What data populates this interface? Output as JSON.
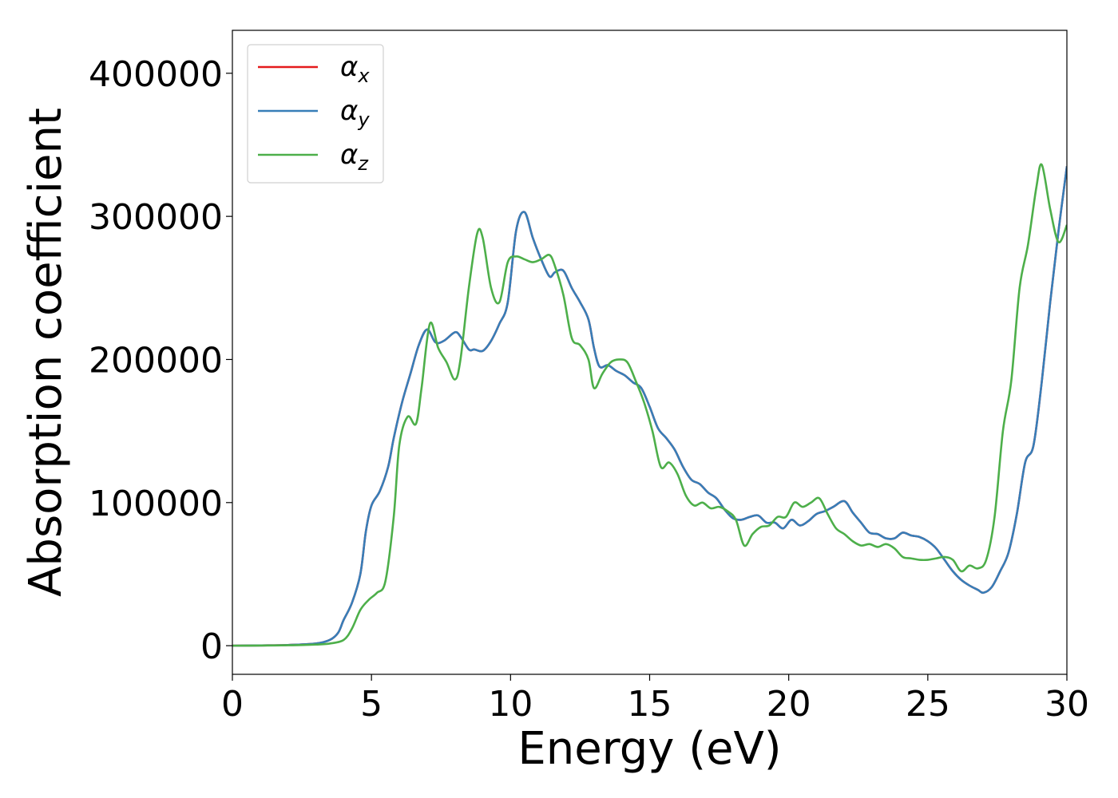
{
  "chart_data": {
    "type": "line",
    "title": "",
    "xlabel": "Energy (eV)",
    "ylabel": "Absorption coefficient",
    "xlim": [
      0,
      30
    ],
    "ylim": [
      -20000,
      430000
    ],
    "xticks": [
      0,
      5,
      10,
      15,
      20,
      25,
      30
    ],
    "xtick_labels": [
      "0",
      "5",
      "10",
      "15",
      "20",
      "25",
      "30"
    ],
    "yticks": [
      0,
      100000,
      200000,
      300000,
      400000
    ],
    "ytick_labels": [
      "0",
      "100000",
      "200000",
      "300000",
      "400000"
    ],
    "grid": false,
    "legend_position": "top-left",
    "series": [
      {
        "name": "α_x",
        "symbol": "α",
        "subscript": "x",
        "color": "#e41a1c",
        "x": [
          0,
          1,
          2,
          3,
          3.5,
          3.8,
          4.0,
          4.3,
          4.6,
          4.8,
          5.0,
          5.3,
          5.6,
          5.8,
          6.1,
          6.4,
          6.7,
          7.0,
          7.3,
          7.6,
          8.0,
          8.2,
          8.5,
          8.7,
          9.0,
          9.3,
          9.6,
          9.9,
          10.2,
          10.5,
          10.8,
          11.1,
          11.4,
          11.6,
          11.9,
          12.2,
          12.5,
          12.8,
          13.0,
          13.2,
          13.5,
          13.8,
          14.1,
          14.4,
          14.7,
          15.0,
          15.3,
          15.6,
          15.9,
          16.2,
          16.5,
          16.8,
          17.1,
          17.4,
          17.7,
          18.0,
          18.3,
          18.6,
          18.9,
          19.2,
          19.5,
          19.8,
          20.1,
          20.4,
          20.7,
          21.0,
          21.3,
          21.6,
          22.0,
          22.3,
          22.6,
          22.9,
          23.2,
          23.5,
          23.8,
          24.1,
          24.4,
          24.7,
          25.0,
          25.3,
          25.6,
          25.9,
          26.2,
          26.5,
          26.8,
          27.0,
          27.3,
          27.6,
          27.9,
          28.2,
          28.5,
          28.8,
          29.1,
          29.4,
          29.7,
          30.0
        ],
        "values": [
          0,
          200,
          500,
          1500,
          4000,
          9000,
          18000,
          30000,
          50000,
          80000,
          98000,
          108000,
          125000,
          145000,
          170000,
          190000,
          210000,
          221000,
          212000,
          213000,
          219000,
          216000,
          207000,
          207000,
          206000,
          213000,
          225000,
          240000,
          290000,
          303000,
          285000,
          270000,
          258000,
          261000,
          262000,
          250000,
          240000,
          228000,
          208000,
          195000,
          196000,
          192000,
          189000,
          184000,
          180000,
          167000,
          152000,
          145000,
          137000,
          125000,
          116000,
          113000,
          107000,
          103000,
          95000,
          89000,
          88000,
          90000,
          91000,
          86000,
          86000,
          82000,
          88000,
          84000,
          87000,
          92000,
          94000,
          97000,
          101000,
          93000,
          86000,
          79000,
          78000,
          75000,
          75000,
          79000,
          77000,
          76000,
          73000,
          68000,
          60000,
          52000,
          46000,
          42000,
          39000,
          37000,
          41000,
          52000,
          65000,
          92000,
          128000,
          140000,
          185000,
          240000,
          290000,
          335000
        ]
      },
      {
        "name": "α_y",
        "symbol": "α",
        "subscript": "y",
        "color": "#377eb8",
        "x": [
          0,
          1,
          2,
          3,
          3.5,
          3.8,
          4.0,
          4.3,
          4.6,
          4.8,
          5.0,
          5.3,
          5.6,
          5.8,
          6.1,
          6.4,
          6.7,
          7.0,
          7.3,
          7.6,
          8.0,
          8.2,
          8.5,
          8.7,
          9.0,
          9.3,
          9.6,
          9.9,
          10.2,
          10.5,
          10.8,
          11.1,
          11.4,
          11.6,
          11.9,
          12.2,
          12.5,
          12.8,
          13.0,
          13.2,
          13.5,
          13.8,
          14.1,
          14.4,
          14.7,
          15.0,
          15.3,
          15.6,
          15.9,
          16.2,
          16.5,
          16.8,
          17.1,
          17.4,
          17.7,
          18.0,
          18.3,
          18.6,
          18.9,
          19.2,
          19.5,
          19.8,
          20.1,
          20.4,
          20.7,
          21.0,
          21.3,
          21.6,
          22.0,
          22.3,
          22.6,
          22.9,
          23.2,
          23.5,
          23.8,
          24.1,
          24.4,
          24.7,
          25.0,
          25.3,
          25.6,
          25.9,
          26.2,
          26.5,
          26.8,
          27.0,
          27.3,
          27.6,
          27.9,
          28.2,
          28.5,
          28.8,
          29.1,
          29.4,
          29.7,
          30.0
        ],
        "values": [
          0,
          200,
          500,
          1500,
          4000,
          9000,
          18000,
          30000,
          50000,
          80000,
          98000,
          108000,
          125000,
          145000,
          170000,
          190000,
          210000,
          221000,
          212000,
          213000,
          219000,
          216000,
          207000,
          207000,
          206000,
          213000,
          225000,
          240000,
          290000,
          303000,
          285000,
          270000,
          258000,
          261000,
          262000,
          250000,
          240000,
          228000,
          208000,
          195000,
          196000,
          192000,
          189000,
          184000,
          180000,
          167000,
          152000,
          145000,
          137000,
          125000,
          116000,
          113000,
          107000,
          103000,
          95000,
          89000,
          88000,
          90000,
          91000,
          86000,
          86000,
          82000,
          88000,
          84000,
          87000,
          92000,
          94000,
          97000,
          101000,
          93000,
          86000,
          79000,
          78000,
          75000,
          75000,
          79000,
          77000,
          76000,
          73000,
          68000,
          60000,
          52000,
          46000,
          42000,
          39000,
          37000,
          41000,
          52000,
          65000,
          92000,
          128000,
          140000,
          185000,
          240000,
          290000,
          335000
        ]
      },
      {
        "name": "α_z",
        "symbol": "α",
        "subscript": "z",
        "color": "#4daf4a",
        "x": [
          0,
          1,
          2,
          3,
          3.5,
          4.0,
          4.3,
          4.6,
          4.9,
          5.2,
          5.5,
          5.8,
          6.0,
          6.3,
          6.6,
          6.8,
          7.1,
          7.4,
          7.7,
          8.0,
          8.2,
          8.5,
          8.8,
          9.0,
          9.3,
          9.6,
          9.9,
          10.2,
          10.5,
          10.8,
          11.1,
          11.4,
          11.6,
          11.9,
          12.2,
          12.5,
          12.8,
          13.0,
          13.3,
          13.6,
          13.9,
          14.2,
          14.5,
          14.8,
          15.1,
          15.4,
          15.7,
          16.0,
          16.3,
          16.6,
          16.9,
          17.2,
          17.5,
          17.8,
          18.1,
          18.4,
          18.7,
          19.0,
          19.3,
          19.6,
          19.9,
          20.2,
          20.5,
          20.8,
          21.1,
          21.4,
          21.7,
          22.0,
          22.3,
          22.6,
          22.9,
          23.2,
          23.5,
          23.8,
          24.1,
          24.4,
          24.7,
          25.0,
          25.3,
          25.6,
          25.9,
          26.2,
          26.5,
          26.8,
          27.1,
          27.4,
          27.7,
          28.0,
          28.3,
          28.6,
          28.9,
          29.1,
          29.4,
          29.7,
          30.0
        ],
        "values": [
          0,
          100,
          300,
          800,
          1500,
          4000,
          12000,
          25000,
          32000,
          37000,
          45000,
          90000,
          140000,
          160000,
          155000,
          180000,
          225000,
          208000,
          198000,
          186000,
          200000,
          250000,
          288000,
          285000,
          250000,
          240000,
          268000,
          272000,
          270000,
          268000,
          270000,
          273000,
          265000,
          245000,
          215000,
          210000,
          200000,
          180000,
          190000,
          198000,
          200000,
          198000,
          185000,
          170000,
          150000,
          125000,
          128000,
          120000,
          105000,
          98000,
          100000,
          96000,
          97000,
          94000,
          88000,
          70000,
          78000,
          83000,
          84000,
          90000,
          90000,
          100000,
          97000,
          100000,
          103000,
          92000,
          82000,
          78000,
          73000,
          70000,
          71000,
          69000,
          71000,
          68000,
          62000,
          61000,
          60000,
          60000,
          61000,
          62000,
          60000,
          52000,
          56000,
          54000,
          60000,
          90000,
          150000,
          185000,
          250000,
          280000,
          320000,
          336000,
          305000,
          282000,
          294000
        ]
      }
    ]
  }
}
